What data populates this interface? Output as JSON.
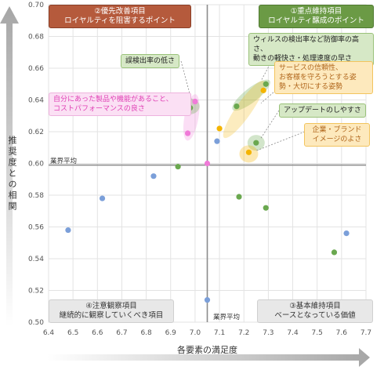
{
  "chart_data": {
    "type": "scatter",
    "xlabel": "各要素の満足度",
    "ylabel": "推奨度との相関",
    "xlim": [
      6.4,
      7.7
    ],
    "ylim": [
      0.5,
      0.7
    ],
    "xticks": [
      "6.4",
      "6.5",
      "6.6",
      "6.7",
      "6.8",
      "6.9",
      "7.0",
      "7.1",
      "7.2",
      "7.3",
      "7.4",
      "7.5",
      "7.6",
      "7.7"
    ],
    "yticks": [
      "0.50",
      "0.52",
      "0.54",
      "0.56",
      "0.58",
      "0.60",
      "0.62",
      "0.64",
      "0.66",
      "0.68",
      "0.70"
    ],
    "average": {
      "x": 7.05,
      "y": 0.599,
      "label": "業界平均"
    },
    "colors": {
      "blue": "#7b9fd9",
      "green": "#6aa84f",
      "pink": "#f07ad8",
      "orange": "#f4b400"
    },
    "series": [
      {
        "color": "blue",
        "points": [
          [
            6.48,
            0.558
          ],
          [
            6.62,
            0.578
          ],
          [
            6.83,
            0.592
          ],
          [
            7.05,
            0.514
          ],
          [
            7.09,
            0.614
          ],
          [
            7.62,
            0.556
          ]
        ]
      },
      {
        "color": "green",
        "points": [
          [
            6.93,
            0.598
          ],
          [
            6.98,
            0.635
          ],
          [
            7.18,
            0.579
          ],
          [
            7.17,
            0.636
          ],
          [
            7.25,
            0.613
          ],
          [
            7.29,
            0.65
          ],
          [
            7.29,
            0.572
          ],
          [
            7.57,
            0.544
          ]
        ]
      },
      {
        "color": "pink",
        "points": [
          [
            6.97,
            0.619
          ],
          [
            7.0,
            0.639
          ],
          [
            7.05,
            0.6
          ]
        ]
      },
      {
        "color": "orange",
        "points": [
          [
            7.1,
            0.622
          ],
          [
            7.22,
            0.607
          ],
          [
            7.28,
            0.646
          ]
        ]
      }
    ],
    "quadrants": {
      "top_left": [
        "②優先改善項目",
        "ロイヤルティを阻害するポイント"
      ],
      "top_right": [
        "①重点維持項目",
        "ロイヤルティ醸成のポイント"
      ],
      "bottom_left": [
        "④注意観察項目",
        "継続的に観察していくべき項目"
      ],
      "bottom_right": [
        "③基本維持項目",
        "ベースとなっている価値"
      ]
    },
    "annotations": {
      "error_rate": "誤検出率の低さ",
      "products": [
        "自分にあった製品や機能があること、",
        "コストパフォーマンスの良さ"
      ],
      "virus": [
        "ウィルスの検出率など防御率の高さ、",
        "動きの軽快さ・処理速度の早さ"
      ],
      "service": [
        "サービスの信頼性、",
        "お客様を守ろうとする姿",
        "勢・大切にする姿勢"
      ],
      "update": "アップデートのしやすさ",
      "corporate": [
        "企業・ブランド",
        "イメージのよさ"
      ]
    }
  }
}
